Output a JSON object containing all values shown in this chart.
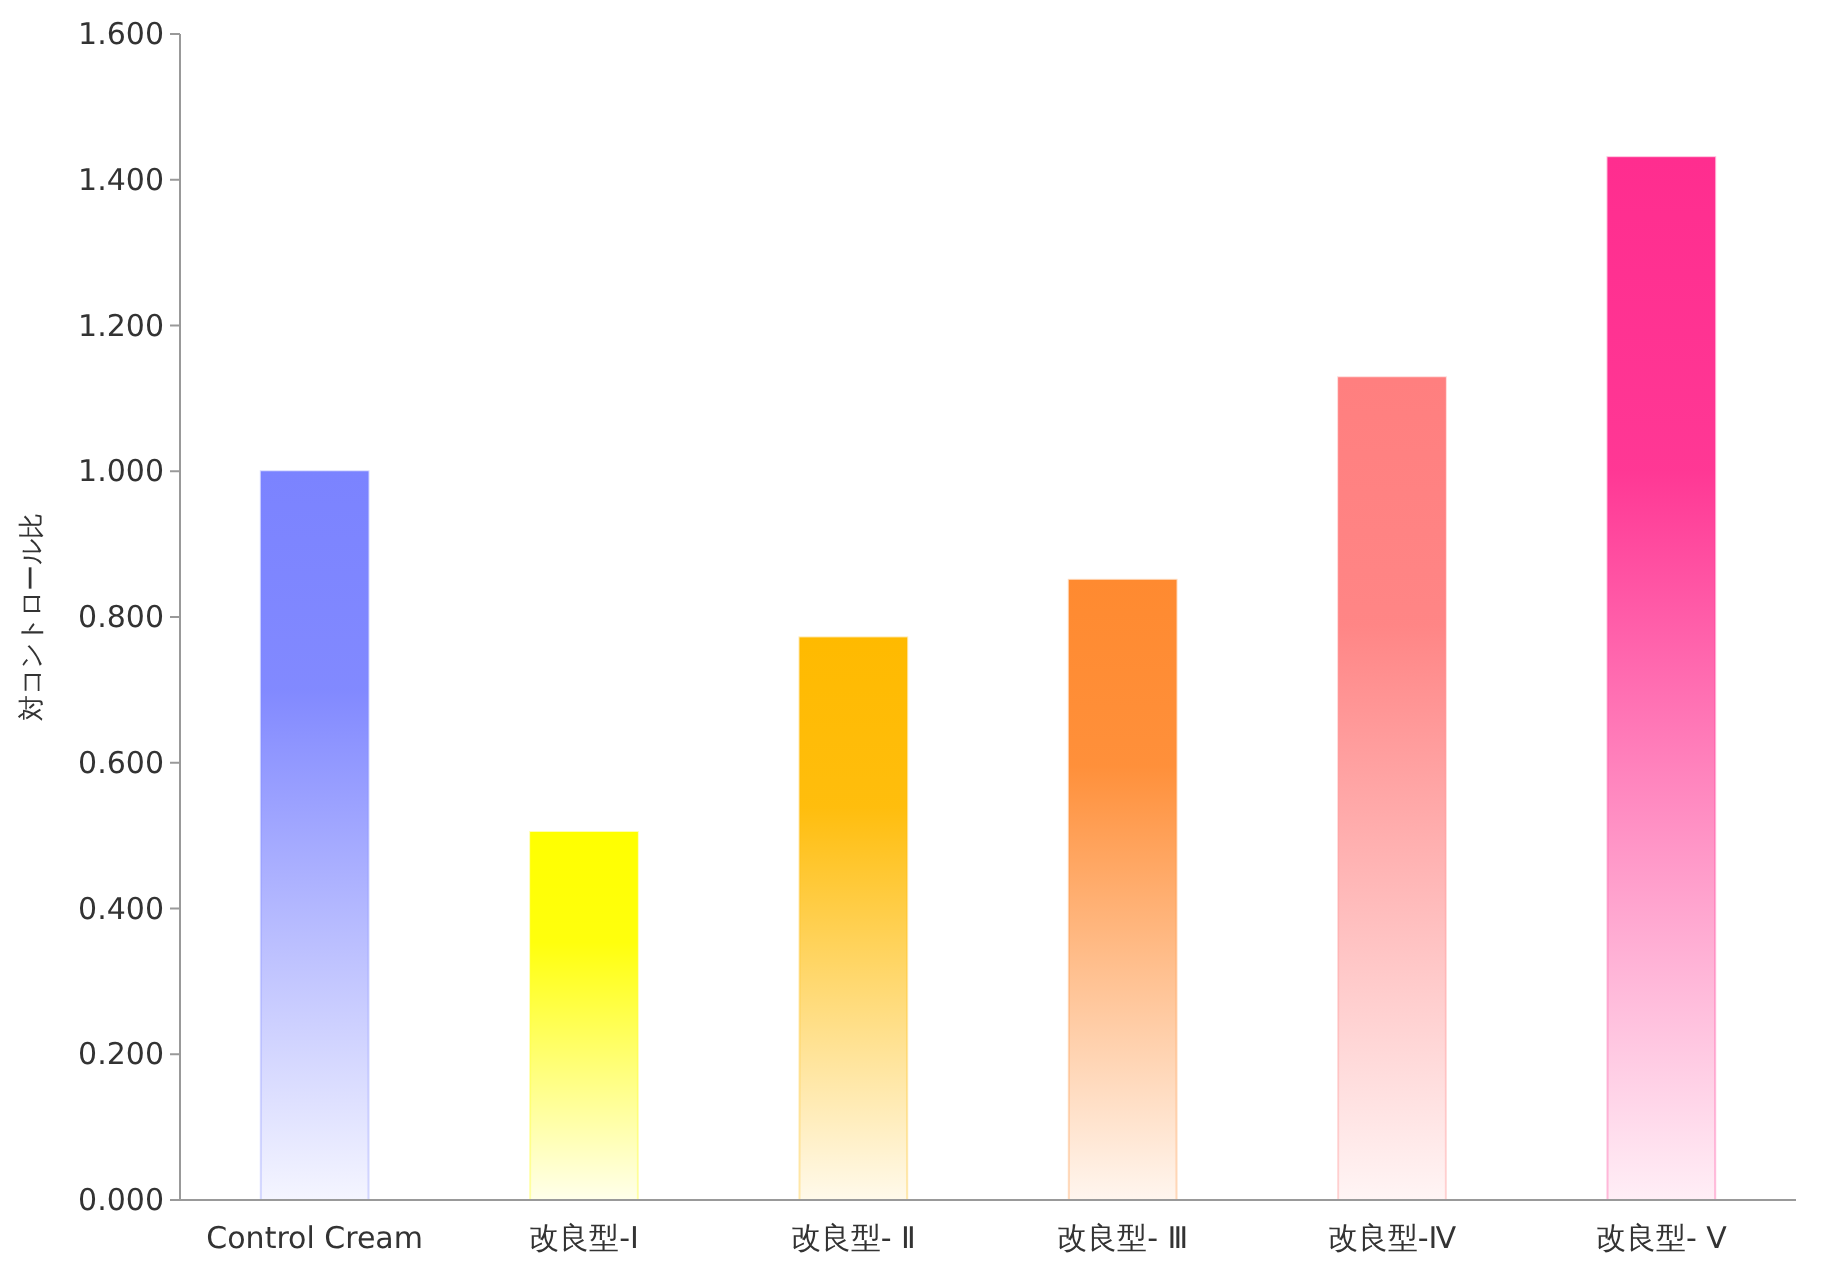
{
  "chart_data": {
    "type": "bar",
    "ylabel": "対コントロール比",
    "categories": [
      "Control Cream",
      "改良型-I",
      "改良型- Ⅱ",
      "改良型- Ⅲ",
      "改良型-Ⅳ",
      "改良型- Ⅴ"
    ],
    "values": [
      1.0,
      0.505,
      0.772,
      0.851,
      1.129,
      1.431
    ],
    "colors": [
      "#7b83ff",
      "#ffff00",
      "#ffba00",
      "#ff8a30",
      "#ff7f7f",
      "#ff2d8f"
    ],
    "ylim": [
      0,
      1.6
    ],
    "yticks": [
      {
        "value": 0,
        "label": "0.000"
      },
      {
        "value": 0.2,
        "label": "0.200"
      },
      {
        "value": 0.4,
        "label": "0.400"
      },
      {
        "value": 0.6,
        "label": "0.600"
      },
      {
        "value": 0.8,
        "label": "0.800"
      },
      {
        "value": 1.0,
        "label": "1.000"
      },
      {
        "value": 1.2,
        "label": "1.200"
      },
      {
        "value": 1.4,
        "label": "1.400"
      },
      {
        "value": 1.6,
        "label": "1.600"
      }
    ],
    "grid": false
  }
}
